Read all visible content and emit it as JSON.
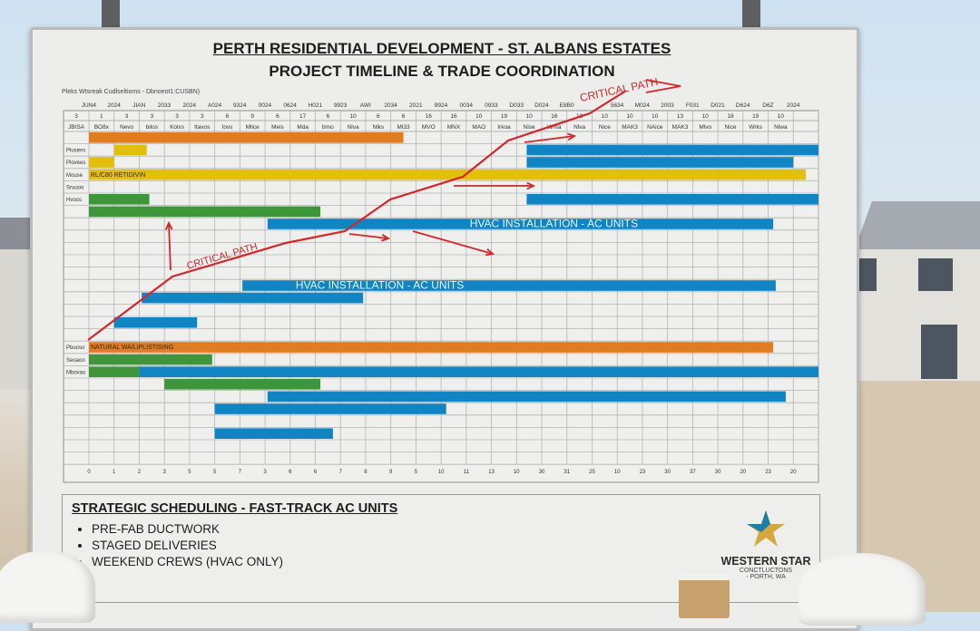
{
  "board": {
    "title": "PERTH RESIDENTIAL DEVELOPMENT - ST. ALBANS ESTATES",
    "subtitle": "PROJECT TIMELINE & TRADE COORDINATION",
    "note": "Pleks Wtsreak Cudlseltioms - Dbnoeot1:CUSBN)"
  },
  "chart_data": {
    "type": "gantt",
    "header_years": [
      "JUN4",
      "2024",
      "JIAN",
      "2033",
      "2024",
      "A024",
      "9324",
      "0024",
      "0624",
      "H021",
      "9923",
      "AWI",
      "2034",
      "2021",
      "9924",
      "0034",
      "0933",
      "D033",
      "D024",
      "E8B0",
      "",
      "5634",
      "M024",
      "2003",
      "F031",
      "D021",
      "D624",
      "D6Z",
      "2024"
    ],
    "header_corner_number": "3",
    "header_numbers": [
      "1",
      "3",
      "3",
      "3",
      "3",
      "6",
      "9",
      "6",
      "17",
      "6",
      "10",
      "6",
      "6",
      "16",
      "16",
      "10",
      "19",
      "10",
      "16",
      "18",
      "10",
      "10",
      "10",
      "13",
      "10",
      "18",
      "19",
      "10",
      ""
    ],
    "header_corner_label": "JBISA",
    "header_names": [
      "BO8x",
      "Nevo",
      "bilos",
      "Kolxs",
      "Itavos",
      "Iovs",
      "Mlice",
      "Meis",
      "Mda",
      "bmo",
      "Nlva",
      "Nlks",
      "Mi33",
      "MVO",
      "MNX",
      "MAO",
      "Irkoa",
      "Nise",
      "Wma",
      "Nlva",
      "Nice",
      "MAK3",
      "NAice",
      "MAK3",
      "Mlvo",
      "Nice",
      "Wrks",
      "Nlwa",
      ""
    ],
    "axis_labels": [
      "0",
      "1",
      "2",
      "3",
      "5",
      "5",
      "7",
      "3",
      "6",
      "6",
      "7",
      "8",
      "9",
      "5",
      "10",
      "11",
      "13",
      "10",
      "30",
      "31",
      "25",
      "10",
      "23",
      "30",
      "37",
      "30",
      "20",
      "23",
      "20"
    ],
    "row_labels": {
      "1": "Plusiers",
      "2": "Plovees",
      "3": "Mouse",
      "4": "Sruuoo",
      "5": "Hvoos",
      "17": "Pbuoso",
      "18": "Seoaoo",
      "19": "Mbovao"
    },
    "colors": {
      "orange": "#e07d22",
      "yellow": "#e2bf0c",
      "green": "#3f963a",
      "blue": "#1185c4",
      "red": "#d3262a"
    },
    "bars": [
      {
        "row": 0,
        "start": 0,
        "end": 12.5,
        "color": "orange"
      },
      {
        "row": 1,
        "start": 1,
        "end": 2.3,
        "color": "yellow"
      },
      {
        "row": 1,
        "start": 17.4,
        "end": 29,
        "color": "blue"
      },
      {
        "row": 2,
        "start": 0,
        "end": 1,
        "color": "yellow"
      },
      {
        "row": 2,
        "start": 17.4,
        "end": 28,
        "color": "blue"
      },
      {
        "row": 3,
        "start": 0,
        "end": 28.5,
        "color": "yellow",
        "label": "RL/C80 RETIDIVIN"
      },
      {
        "row": 5,
        "start": 0,
        "end": 2.4,
        "color": "green"
      },
      {
        "row": 5,
        "start": 17.4,
        "end": 29,
        "color": "blue"
      },
      {
        "row": 6,
        "start": 0,
        "end": 9.2,
        "color": "green"
      },
      {
        "row": 7,
        "start": 7.1,
        "end": 27.2,
        "color": "blue",
        "label": "HVAC INSTALLATION - AC UNITS"
      },
      {
        "row": 12,
        "start": 6.1,
        "end": 27.3,
        "color": "blue",
        "label": "HVAC INSTALLATION - AC UNITS"
      },
      {
        "row": 13,
        "start": 2.1,
        "end": 10.9,
        "color": "blue"
      },
      {
        "row": 15,
        "start": 1,
        "end": 4.3,
        "color": "blue"
      },
      {
        "row": 17,
        "start": 0,
        "end": 27.2,
        "color": "orange",
        "label": "NATURAL WA/LIPLISTISING"
      },
      {
        "row": 18,
        "start": 0,
        "end": 4.9,
        "color": "green"
      },
      {
        "row": 19,
        "start": 0,
        "end": 2,
        "color": "green"
      },
      {
        "row": 19,
        "start": 2,
        "end": 29,
        "color": "blue"
      },
      {
        "row": 20,
        "start": 3,
        "end": 9.2,
        "color": "green"
      },
      {
        "row": 21,
        "start": 7.1,
        "end": 27.7,
        "color": "blue"
      },
      {
        "row": 22,
        "start": 5,
        "end": 14.2,
        "color": "blue"
      },
      {
        "row": 24,
        "start": 5,
        "end": 9.7,
        "color": "blue"
      }
    ],
    "annotations": [
      "CRITICAL PATH",
      "CRITICAL PATH"
    ]
  },
  "notes": {
    "title": "STRATEGIC SCHEDULING - FAST-TRACK AC UNITS",
    "items": [
      "PRE-FAB DUCTWORK",
      "STAGED DELIVERIES",
      "WEEKEND CREWS (HVAC ONLY)"
    ]
  },
  "logo": {
    "name": "WESTERN STAR",
    "line1": "CONCTLUCTONS",
    "line2": "- PORTH, WA"
  }
}
